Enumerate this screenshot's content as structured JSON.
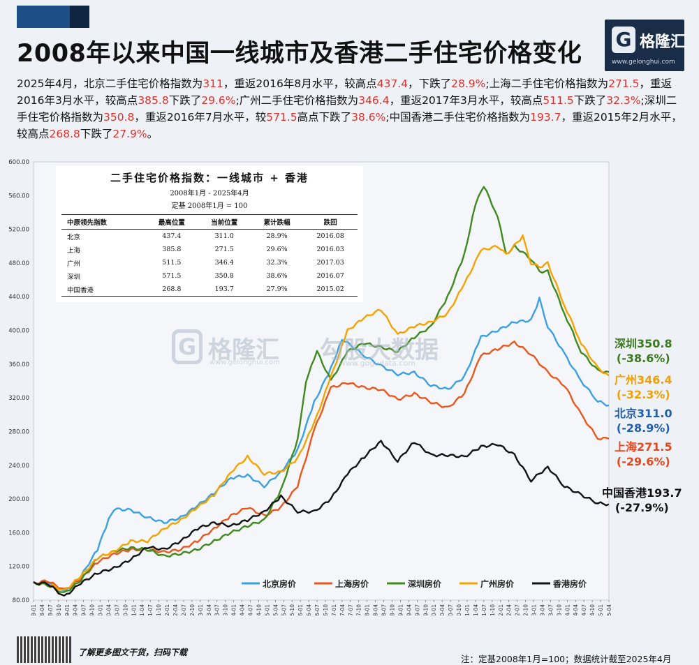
{
  "header": {
    "title": "2008年以来中国一线城市及香港二手住宅价格变化",
    "logo_name": "格隆汇",
    "logo_url": "www.gelonghui.com"
  },
  "description": [
    {
      "t": "2025年4月，北京二手住宅价格指数为"
    },
    {
      "t": "311",
      "hl": true
    },
    {
      "t": "，重返2016年8月水平，较高点"
    },
    {
      "t": "437.4",
      "hl": true
    },
    {
      "t": "，下跌了"
    },
    {
      "t": "28.9%",
      "hl": true
    },
    {
      "t": ";上海二手住宅价格指数为"
    },
    {
      "t": "271.5",
      "hl": true
    },
    {
      "t": "，重返2016年3月水平，较高点"
    },
    {
      "t": "385.8",
      "hl": true
    },
    {
      "t": "下跌了"
    },
    {
      "t": "29.6%",
      "hl": true
    },
    {
      "t": ";广州二手住宅价格指数为"
    },
    {
      "t": "346.4",
      "hl": true
    },
    {
      "t": "，重返2017年3月水平，较高点"
    },
    {
      "t": "511.5",
      "hl": true
    },
    {
      "t": "下跌了"
    },
    {
      "t": "32.3%",
      "hl": true
    },
    {
      "t": ";深圳二手住宅价格指数为"
    },
    {
      "t": "350.8",
      "hl": true
    },
    {
      "t": "，重返2016年7月水平，较"
    },
    {
      "t": "571.5",
      "hl": true
    },
    {
      "t": "高点下跌了"
    },
    {
      "t": "38.6%",
      "hl": true
    },
    {
      "t": ";中国香港二手住宅价格指数为"
    },
    {
      "t": "193.7",
      "hl": true
    },
    {
      "t": "，重返2015年2月水平，较高点"
    },
    {
      "t": "268.8",
      "hl": true
    },
    {
      "t": "下跌了"
    },
    {
      "t": "27.9%",
      "hl": true
    },
    {
      "t": "。"
    }
  ],
  "table": {
    "title": "二手住宅价格指数：一线城市 + 香港",
    "subtitle1": "2008年1月 - 2025年4月",
    "subtitle2": "定基 2008年1月 = 100",
    "headers": [
      "中原领先指数",
      "最高位置",
      "当前位置",
      "累计跌幅",
      "跌回"
    ],
    "rows": [
      [
        "北京",
        "437.4",
        "311.0",
        "28.9%",
        "2016.08"
      ],
      [
        "上海",
        "385.8",
        "271.5",
        "29.6%",
        "2016.03"
      ],
      [
        "广州",
        "511.5",
        "346.4",
        "32.3%",
        "2017.03"
      ],
      [
        "深圳",
        "571.5",
        "350.8",
        "38.6%",
        "2016.07"
      ],
      [
        "中国香港",
        "268.8",
        "193.7",
        "27.9%",
        "2015.02"
      ]
    ]
  },
  "watermark": {
    "name1": "格隆汇",
    "url1": "www.gelonghui.com",
    "name2": "勾股大数据",
    "url2": "www.gogudata.com"
  },
  "end_labels": [
    {
      "name": "深圳",
      "value": "350.8",
      "change": "(-38.6%)",
      "color": "#3b7a1e"
    },
    {
      "name": "广州",
      "value": "346.4",
      "change": "(-32.3%)",
      "color": "#f0a000"
    },
    {
      "name": "北京",
      "value": "311.0",
      "change": "(-28.9%)",
      "color": "#1f5fb0"
    },
    {
      "name": "上海",
      "value": "271.5",
      "change": "(-29.6%)",
      "color": "#e8471c"
    },
    {
      "name": "中国香港",
      "value": "193.7",
      "change": "(-27.9%)",
      "color": "#111111"
    }
  ],
  "footer": {
    "cta": "了解更多图文干货，扫码下载",
    "note": "注：定基2008年1月=100；数据统计截至2025年4月"
  },
  "chart_data": {
    "type": "line",
    "ylim": [
      80,
      600
    ],
    "yticks": [
      "80.00",
      "120.00",
      "160.00",
      "200.00",
      "240.00",
      "280.00",
      "320.00",
      "360.00",
      "400.00",
      "440.00",
      "480.00",
      "520.00",
      "560.00",
      "600.00"
    ],
    "x_tick_labels": [
      "2008-01",
      "2008-04",
      "2008-07",
      "2008-10",
      "2009-01",
      "2009-04",
      "2009-07",
      "2009-10",
      "2010-01",
      "2010-04",
      "2010-07",
      "2010-10",
      "2011-01",
      "2011-04",
      "2011-07",
      "2011-10",
      "2012-01",
      "2012-04",
      "2012-07",
      "2012-10",
      "2013-01",
      "2013-04",
      "2013-07",
      "2013-10",
      "2014-01",
      "2014-04",
      "2014-07",
      "2014-10",
      "2015-01",
      "2015-04",
      "2015-07",
      "2015-10",
      "2016-01",
      "2016-04",
      "2016-07",
      "2016-10",
      "2017-01",
      "2017-04",
      "2017-07",
      "2017-10",
      "2018-01",
      "2018-04",
      "2018-07",
      "2018-10",
      "2019-01",
      "2019-04",
      "2019-07",
      "2019-10",
      "2020-01",
      "2020-04",
      "2020-07",
      "2020-10",
      "2021-01",
      "2021-04",
      "2021-07",
      "2021-10",
      "2022-01",
      "2022-04",
      "2022-07",
      "2022-10",
      "2023-01",
      "2023-04",
      "2023-07",
      "2023-10",
      "2024-01",
      "2024-04",
      "2024-07",
      "2024-10",
      "2025-01",
      "2025-04"
    ],
    "x_start": "2008-01",
    "x_end": "2025-04",
    "series": [
      {
        "name": "北京房价",
        "color": "#3aa0e0",
        "points": [
          [
            "2008-01",
            100
          ],
          [
            "2008-06",
            102
          ],
          [
            "2008-12",
            90
          ],
          [
            "2009-06",
            108
          ],
          [
            "2009-12",
            140
          ],
          [
            "2010-04",
            175
          ],
          [
            "2010-06",
            188
          ],
          [
            "2010-12",
            187
          ],
          [
            "2011-06",
            178
          ],
          [
            "2011-12",
            172
          ],
          [
            "2012-06",
            178
          ],
          [
            "2012-12",
            192
          ],
          [
            "2013-06",
            207
          ],
          [
            "2013-12",
            225
          ],
          [
            "2014-06",
            228
          ],
          [
            "2014-12",
            215
          ],
          [
            "2015-06",
            232
          ],
          [
            "2015-12",
            258
          ],
          [
            "2016-06",
            315
          ],
          [
            "2016-12",
            355
          ],
          [
            "2017-04",
            390
          ],
          [
            "2017-12",
            370
          ],
          [
            "2018-06",
            358
          ],
          [
            "2018-12",
            348
          ],
          [
            "2019-06",
            350
          ],
          [
            "2019-12",
            335
          ],
          [
            "2020-06",
            330
          ],
          [
            "2020-12",
            345
          ],
          [
            "2021-06",
            392
          ],
          [
            "2021-12",
            400
          ],
          [
            "2022-06",
            410
          ],
          [
            "2022-12",
            412
          ],
          [
            "2023-03",
            437.4
          ],
          [
            "2023-06",
            405
          ],
          [
            "2023-12",
            372
          ],
          [
            "2024-06",
            340
          ],
          [
            "2024-12",
            316
          ],
          [
            "2025-04",
            311
          ]
        ]
      },
      {
        "name": "上海房价",
        "color": "#e8571c",
        "points": [
          [
            "2008-01",
            100
          ],
          [
            "2008-06",
            103
          ],
          [
            "2008-12",
            92
          ],
          [
            "2009-06",
            105
          ],
          [
            "2009-12",
            125
          ],
          [
            "2010-06",
            135
          ],
          [
            "2010-12",
            140
          ],
          [
            "2011-06",
            140
          ],
          [
            "2011-12",
            137
          ],
          [
            "2012-06",
            140
          ],
          [
            "2012-12",
            150
          ],
          [
            "2013-06",
            165
          ],
          [
            "2013-12",
            180
          ],
          [
            "2014-06",
            190
          ],
          [
            "2014-12",
            180
          ],
          [
            "2015-06",
            190
          ],
          [
            "2015-12",
            215
          ],
          [
            "2016-06",
            282
          ],
          [
            "2016-12",
            332
          ],
          [
            "2017-06",
            338
          ],
          [
            "2017-12",
            332
          ],
          [
            "2018-06",
            330
          ],
          [
            "2018-12",
            318
          ],
          [
            "2019-06",
            325
          ],
          [
            "2019-12",
            315
          ],
          [
            "2020-06",
            308
          ],
          [
            "2020-12",
            325
          ],
          [
            "2021-06",
            370
          ],
          [
            "2021-12",
            378
          ],
          [
            "2022-06",
            385.8
          ],
          [
            "2022-12",
            372
          ],
          [
            "2023-06",
            350
          ],
          [
            "2023-12",
            335
          ],
          [
            "2024-06",
            300
          ],
          [
            "2024-12",
            272
          ],
          [
            "2025-04",
            271.5
          ]
        ]
      },
      {
        "name": "深圳房价",
        "color": "#3f8a1e",
        "points": [
          [
            "2008-01",
            100
          ],
          [
            "2008-06",
            98
          ],
          [
            "2008-12",
            88
          ],
          [
            "2009-06",
            103
          ],
          [
            "2009-12",
            130
          ],
          [
            "2010-06",
            138
          ],
          [
            "2010-12",
            142
          ],
          [
            "2011-06",
            140
          ],
          [
            "2011-12",
            132
          ],
          [
            "2012-06",
            135
          ],
          [
            "2012-12",
            140
          ],
          [
            "2013-06",
            150
          ],
          [
            "2013-12",
            160
          ],
          [
            "2014-06",
            168
          ],
          [
            "2014-12",
            175
          ],
          [
            "2015-06",
            210
          ],
          [
            "2015-12",
            270
          ],
          [
            "2016-03",
            340
          ],
          [
            "2016-07",
            375
          ],
          [
            "2016-12",
            340
          ],
          [
            "2017-06",
            375
          ],
          [
            "2017-12",
            385
          ],
          [
            "2018-06",
            380
          ],
          [
            "2018-12",
            375
          ],
          [
            "2019-06",
            392
          ],
          [
            "2019-12",
            405
          ],
          [
            "2020-06",
            440
          ],
          [
            "2020-12",
            490
          ],
          [
            "2021-04",
            550
          ],
          [
            "2021-07",
            571.5
          ],
          [
            "2021-12",
            535
          ],
          [
            "2022-03",
            490
          ],
          [
            "2022-06",
            500
          ],
          [
            "2022-12",
            485
          ],
          [
            "2023-03",
            470
          ],
          [
            "2023-06",
            470
          ],
          [
            "2023-12",
            420
          ],
          [
            "2024-06",
            375
          ],
          [
            "2024-12",
            352
          ],
          [
            "2025-04",
            350.8
          ]
        ]
      },
      {
        "name": "广州房价",
        "color": "#f5a300",
        "points": [
          [
            "2008-01",
            100
          ],
          [
            "2008-06",
            100
          ],
          [
            "2008-12",
            91
          ],
          [
            "2009-06",
            108
          ],
          [
            "2009-12",
            130
          ],
          [
            "2010-06",
            138
          ],
          [
            "2010-12",
            150
          ],
          [
            "2011-06",
            150
          ],
          [
            "2011-12",
            165
          ],
          [
            "2012-06",
            175
          ],
          [
            "2012-12",
            190
          ],
          [
            "2013-06",
            205
          ],
          [
            "2013-12",
            232
          ],
          [
            "2014-06",
            250
          ],
          [
            "2014-12",
            230
          ],
          [
            "2015-06",
            232
          ],
          [
            "2015-12",
            248
          ],
          [
            "2016-06",
            290
          ],
          [
            "2016-12",
            345
          ],
          [
            "2017-06",
            400
          ],
          [
            "2017-12",
            415
          ],
          [
            "2018-06",
            425
          ],
          [
            "2018-12",
            395
          ],
          [
            "2019-06",
            405
          ],
          [
            "2019-12",
            410
          ],
          [
            "2020-06",
            420
          ],
          [
            "2020-12",
            455
          ],
          [
            "2021-06",
            495
          ],
          [
            "2021-12",
            500
          ],
          [
            "2022-03",
            490
          ],
          [
            "2022-09",
            511.5
          ],
          [
            "2022-12",
            480
          ],
          [
            "2023-03",
            475
          ],
          [
            "2023-06",
            480
          ],
          [
            "2023-12",
            430
          ],
          [
            "2024-06",
            385
          ],
          [
            "2024-12",
            355
          ],
          [
            "2025-04",
            346.4
          ]
        ]
      },
      {
        "name": "香港房价",
        "color": "#111111",
        "points": [
          [
            "2008-01",
            100
          ],
          [
            "2008-06",
            100
          ],
          [
            "2008-12",
            84
          ],
          [
            "2009-06",
            100
          ],
          [
            "2009-12",
            112
          ],
          [
            "2010-06",
            118
          ],
          [
            "2010-12",
            128
          ],
          [
            "2011-06",
            143
          ],
          [
            "2011-12",
            140
          ],
          [
            "2012-06",
            150
          ],
          [
            "2012-12",
            165
          ],
          [
            "2013-06",
            172
          ],
          [
            "2013-12",
            168
          ],
          [
            "2014-06",
            175
          ],
          [
            "2014-12",
            185
          ],
          [
            "2015-06",
            203
          ],
          [
            "2015-12",
            185
          ],
          [
            "2016-06",
            185
          ],
          [
            "2016-12",
            200
          ],
          [
            "2017-06",
            230
          ],
          [
            "2017-12",
            250
          ],
          [
            "2018-06",
            268.8
          ],
          [
            "2018-12",
            245
          ],
          [
            "2019-06",
            268
          ],
          [
            "2019-12",
            252
          ],
          [
            "2020-06",
            252
          ],
          [
            "2020-12",
            250
          ],
          [
            "2021-06",
            262
          ],
          [
            "2021-12",
            265
          ],
          [
            "2022-06",
            252
          ],
          [
            "2022-12",
            222
          ],
          [
            "2023-06",
            238
          ],
          [
            "2023-12",
            215
          ],
          [
            "2024-06",
            205
          ],
          [
            "2024-12",
            195
          ],
          [
            "2025-04",
            193.7
          ]
        ]
      }
    ]
  }
}
